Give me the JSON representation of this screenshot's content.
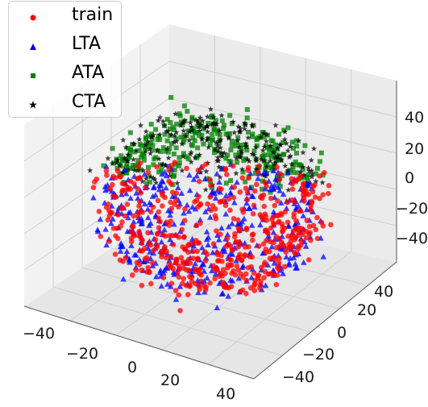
{
  "chart_data": {
    "type": "scatter",
    "projection": "3d",
    "title": "",
    "xlabel": "",
    "ylabel": "",
    "zlabel": "",
    "x_ticks": [
      "−40",
      "−20",
      "0",
      "20",
      "40"
    ],
    "y_ticks": [
      "40",
      "20",
      "0",
      "−20",
      "−40"
    ],
    "z_ticks": [
      "40",
      "20",
      "0",
      "−20",
      "−40"
    ],
    "xlim": [
      -50,
      50
    ],
    "ylim": [
      -50,
      50
    ],
    "zlim": [
      -50,
      50
    ],
    "grid": true,
    "legend_position": "top-left",
    "series": [
      {
        "name": "train",
        "marker": "circle",
        "color": "#ff0000",
        "approx_count": 700,
        "description_region": "lower-left half of point cloud"
      },
      {
        "name": "LTA",
        "marker": "triangle",
        "color": "#0000ff",
        "approx_count": 500,
        "description_region": "lower-left half of point cloud"
      },
      {
        "name": "ATA",
        "marker": "square",
        "color": "#008000",
        "approx_count": 300,
        "description_region": "upper-right cap of point cloud"
      },
      {
        "name": "CTA",
        "marker": "star",
        "color": "#000000",
        "approx_count": 250,
        "description_region": "upper-right cap of point cloud"
      }
    ]
  }
}
